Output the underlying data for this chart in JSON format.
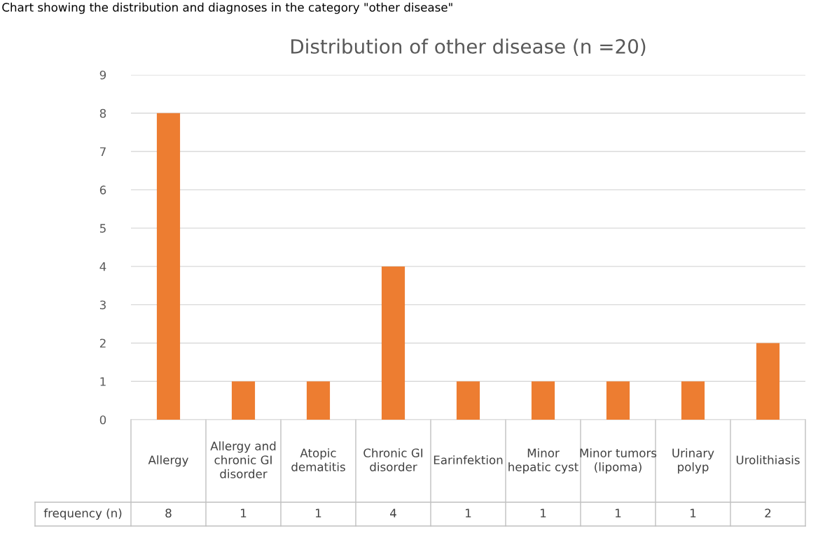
{
  "chart_data": {
    "type": "bar",
    "title": "Distribution of other disease (n =20)",
    "annotations": [
      "Chart showing the distribution and diagnoses in the category \"other disease\""
    ],
    "categories": [
      "Allergy",
      "Allergy and chronic GI disorder",
      "Atopic dematitis",
      "Chronic GI disorder",
      "Earinfektion",
      "Minor hepatic cyst",
      "Minor tumors (lipoma)",
      "Urinary polyp",
      "Urolithiasis"
    ],
    "series": [
      {
        "name": "frequency (n)",
        "color": "#ed7d31",
        "values": [
          8,
          1,
          1,
          4,
          1,
          1,
          1,
          1,
          2
        ]
      }
    ],
    "ylim": [
      0,
      9
    ],
    "yticks": [
      0,
      1,
      2,
      3,
      4,
      5,
      6,
      7,
      8,
      9
    ],
    "grid": "y",
    "data_labels": true
  }
}
